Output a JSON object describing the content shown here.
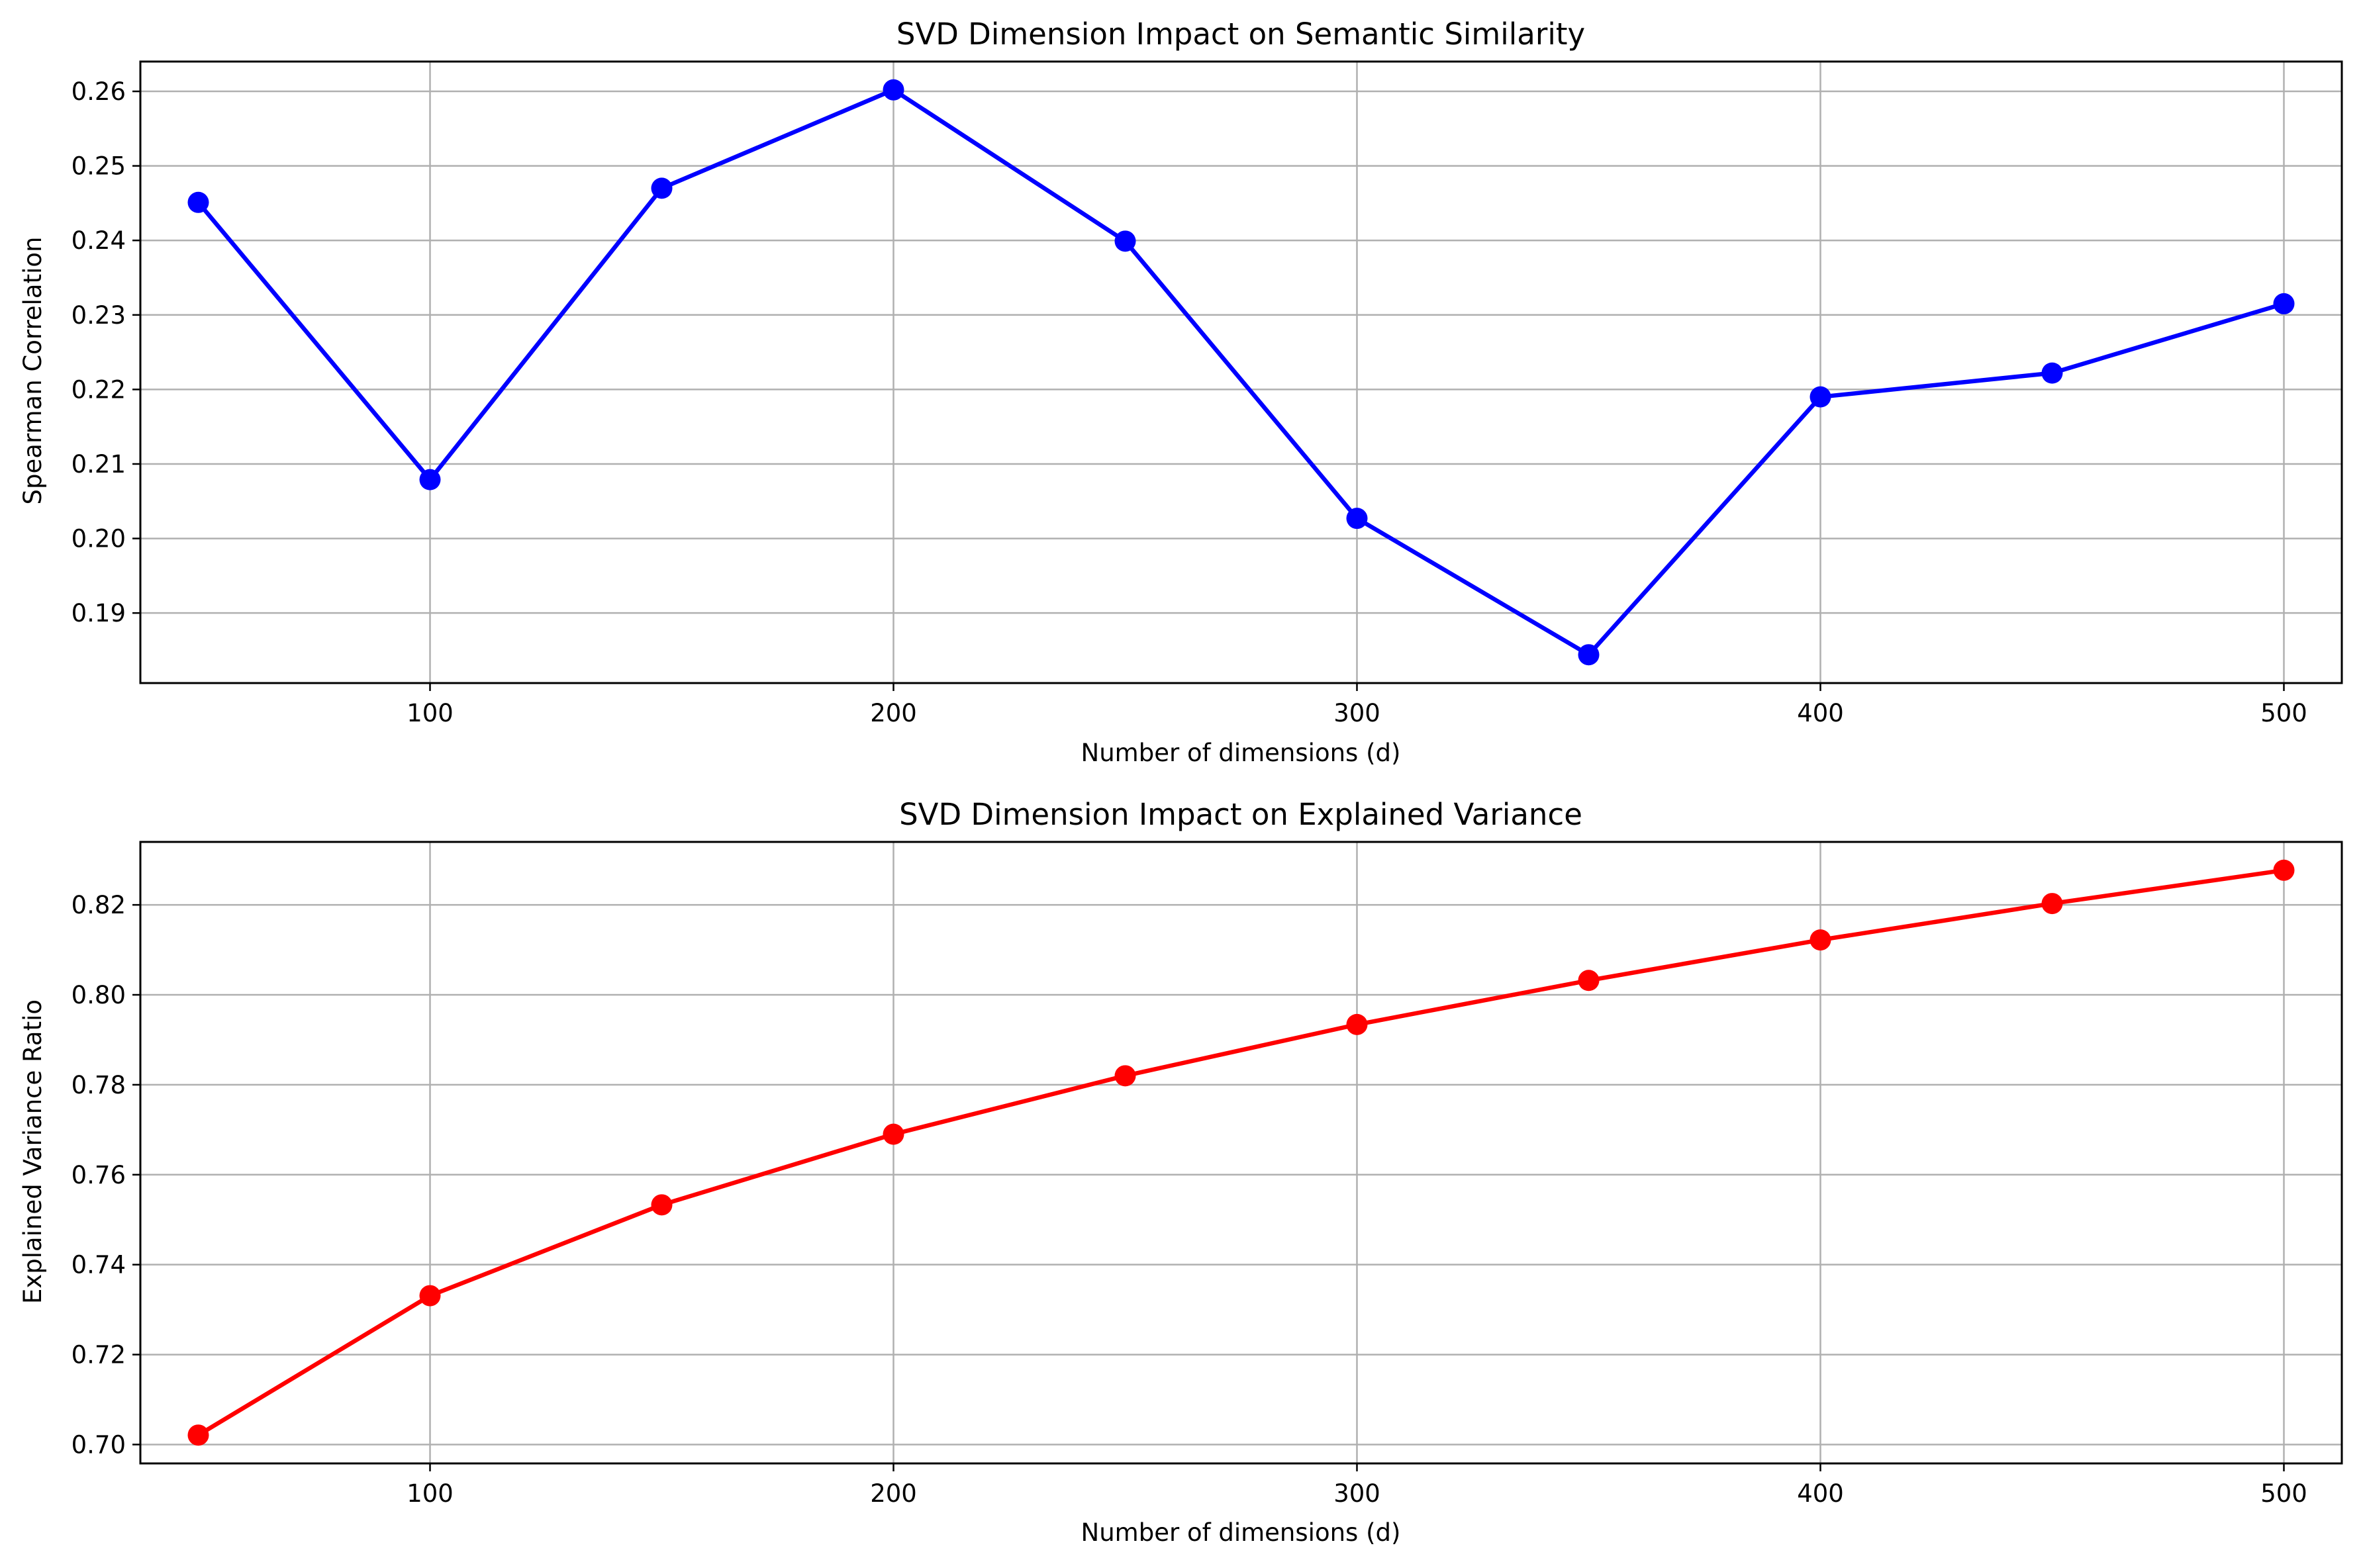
{
  "chart_data": [
    {
      "type": "line",
      "title": "SVD Dimension Impact on Semantic Similarity",
      "xlabel": "Number of dimensions (d)",
      "ylabel": "Spearman Correlation",
      "xlim": [
        37.5,
        512.5
      ],
      "ylim": [
        0.1806,
        0.264
      ],
      "xticks": [
        100,
        200,
        300,
        400,
        500
      ],
      "yticks": [
        0.19,
        0.2,
        0.21,
        0.22,
        0.23,
        0.24,
        0.25,
        0.26
      ],
      "grid": true,
      "color": "#0000ff",
      "series": [
        {
          "x": [
            50,
            100,
            150,
            200,
            250,
            300,
            350,
            400,
            450,
            500
          ],
          "values": [
            0.2451,
            0.2079,
            0.247,
            0.2602,
            0.2399,
            0.2027,
            0.1844,
            0.219,
            0.2222,
            0.2315
          ]
        }
      ]
    },
    {
      "type": "line",
      "title": "SVD Dimension Impact on Explained Variance",
      "xlabel": "Number of dimensions (d)",
      "ylabel": "Explained Variance Ratio",
      "xlim": [
        37.5,
        512.5
      ],
      "ylim": [
        0.6958,
        0.834
      ],
      "xticks": [
        100,
        200,
        300,
        400,
        500
      ],
      "yticks": [
        0.7,
        0.72,
        0.74,
        0.76,
        0.78,
        0.8,
        0.82
      ],
      "grid": true,
      "color": "#ff0000",
      "series": [
        {
          "x": [
            50,
            100,
            150,
            200,
            250,
            300,
            350,
            400,
            450,
            500
          ],
          "values": [
            0.7021,
            0.7331,
            0.7533,
            0.769,
            0.782,
            0.7934,
            0.8032,
            0.8122,
            0.8203,
            0.8277
          ]
        }
      ]
    }
  ]
}
